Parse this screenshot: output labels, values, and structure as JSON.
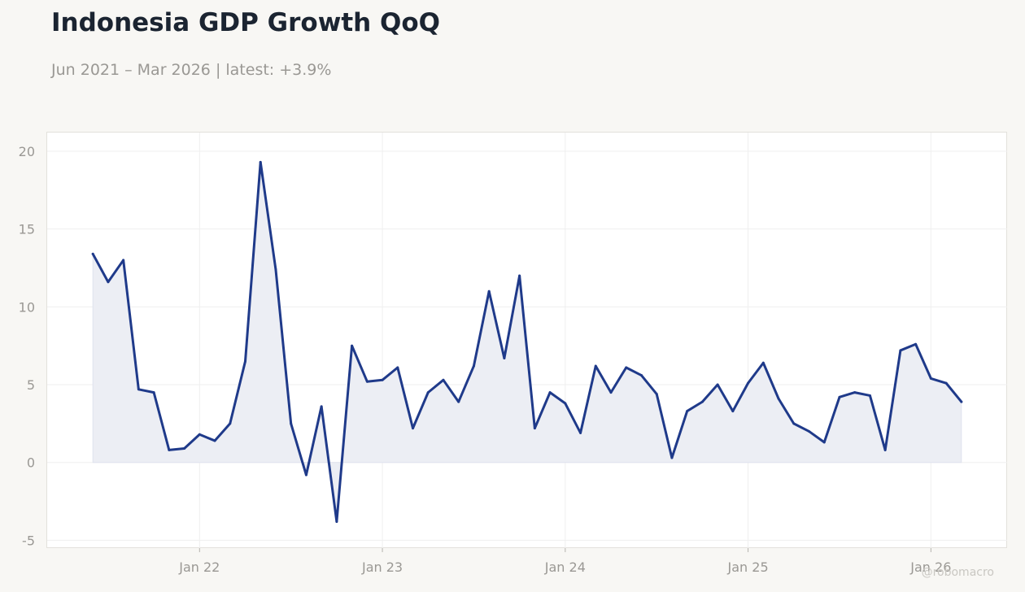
{
  "title": "Indonesia GDP Growth QoQ",
  "subtitle": "Jun 2021 – Mar 2026 | latest: +3.9%",
  "watermark": "@robomacro",
  "colors": {
    "line": "#1f3a8a",
    "area": "#eceef4",
    "grid": "#efefef",
    "background": "#f8f7f4",
    "plot_background": "#ffffff"
  },
  "chart_data": {
    "type": "area",
    "grid": true,
    "ylim": [
      -5.5,
      21.2
    ],
    "yticks": [
      -5,
      0,
      5,
      10,
      15,
      20
    ],
    "ytick_labels": [
      "-5",
      "0",
      "5",
      "10",
      "15",
      "20"
    ],
    "xticks": [
      "2022-01",
      "2023-01",
      "2024-01",
      "2025-01",
      "2026-01"
    ],
    "xtick_labels": [
      "Jan 22",
      "Jan 23",
      "Jan 24",
      "Jan 25",
      "Jan 26"
    ],
    "xlim": [
      "2021-03",
      "2026-06"
    ],
    "series": [
      {
        "x": [
          "2021-06",
          "2021-07",
          "2021-08",
          "2021-09",
          "2021-10",
          "2021-11",
          "2021-12",
          "2022-01",
          "2022-02",
          "2022-03",
          "2022-04",
          "2022-05",
          "2022-06",
          "2022-07",
          "2022-08",
          "2022-09",
          "2022-10",
          "2022-11",
          "2022-12",
          "2023-01",
          "2023-02",
          "2023-03",
          "2023-04",
          "2023-05",
          "2023-06",
          "2023-07",
          "2023-08",
          "2023-09",
          "2023-10",
          "2023-11",
          "2023-12",
          "2024-01",
          "2024-02",
          "2024-03",
          "2024-04",
          "2024-05",
          "2024-06",
          "2024-07",
          "2024-08",
          "2024-09",
          "2024-10",
          "2024-11",
          "2024-12",
          "2025-01",
          "2025-02",
          "2025-03",
          "2025-04",
          "2025-05",
          "2025-06",
          "2025-07",
          "2025-08",
          "2025-09",
          "2025-10",
          "2025-11",
          "2025-12",
          "2026-01",
          "2026-02",
          "2026-03"
        ],
        "values": [
          13.4,
          11.6,
          13.0,
          4.7,
          4.5,
          0.8,
          0.9,
          1.8,
          1.4,
          2.5,
          6.5,
          19.3,
          12.4,
          2.5,
          -0.8,
          3.6,
          -3.8,
          7.5,
          5.2,
          5.3,
          6.1,
          2.2,
          4.5,
          5.3,
          3.9,
          6.2,
          11.0,
          6.7,
          12.0,
          2.2,
          4.5,
          3.8,
          1.9,
          6.2,
          4.5,
          6.1,
          5.6,
          4.4,
          0.3,
          3.3,
          3.9,
          5.0,
          3.3,
          5.1,
          6.4,
          4.1,
          2.5,
          2.0,
          1.3,
          4.2,
          4.5,
          4.3,
          0.8,
          7.2,
          7.6,
          5.4,
          5.1,
          3.9
        ]
      }
    ]
  }
}
